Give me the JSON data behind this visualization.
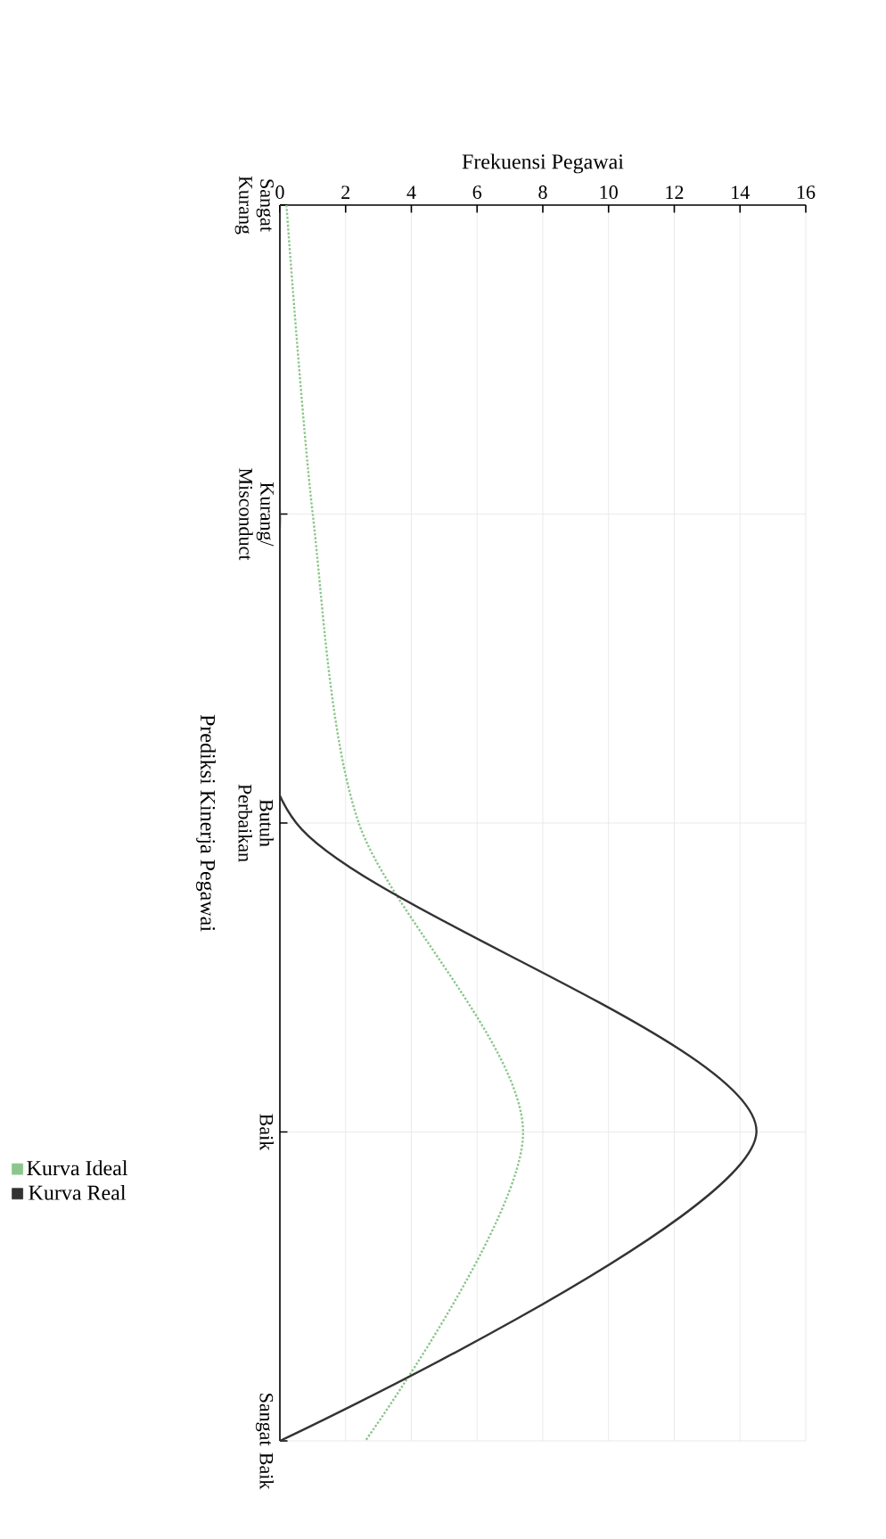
{
  "chart_data": {
    "type": "line",
    "orientation": "horizontal",
    "xlabel": "Frekuensi Pegawai",
    "ylabel": "Prediksi Kinerja Pegawai",
    "categories": [
      "Sangat Kurang",
      "Kurang/ Misconduct",
      "Butuh Perbaikan",
      "Baik",
      "Sangat Baik"
    ],
    "series": [
      {
        "name": "Kurva Ideal",
        "color": "#8cc68c",
        "line_style": "dotted",
        "values": [
          0.2,
          1,
          2.4,
          7.4,
          2.6
        ]
      },
      {
        "name": "Kurva Real",
        "color": "#333333",
        "line_style": "solid",
        "values": [
          0,
          0,
          0.5,
          14.5,
          0
        ]
      }
    ],
    "xlim": [
      0,
      16
    ],
    "xticks": [
      0,
      2,
      4,
      6,
      8,
      10,
      12,
      14,
      16
    ],
    "grid": true,
    "legend": "bottom",
    "marker": "none"
  }
}
